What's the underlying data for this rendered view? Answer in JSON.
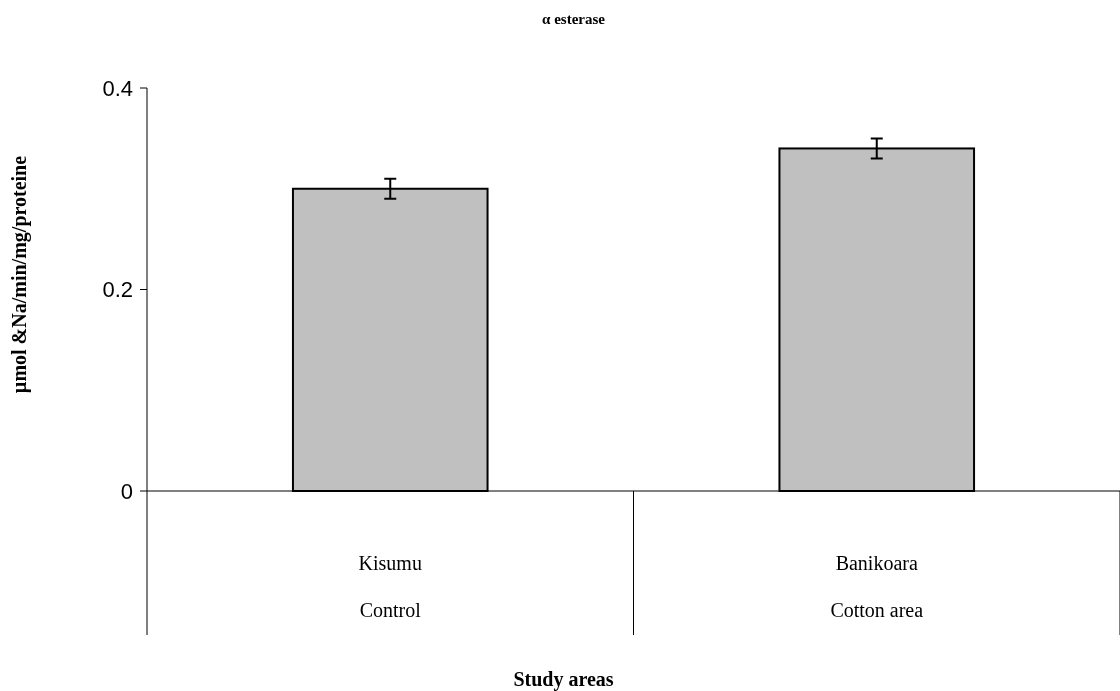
{
  "chart_data": {
    "type": "bar",
    "title": "α esterase",
    "xlabel": "Study areas",
    "ylabel": "µmol &Na/min/mg/proteine",
    "categories": [
      "Kisumu",
      "Banikoara"
    ],
    "values": [
      0.3,
      0.34
    ],
    "errors": [
      0.01,
      0.01
    ],
    "color": "#c0c0c0",
    "ylim": [
      0,
      0.4
    ],
    "yticks": [
      0,
      0.2,
      0.4
    ],
    "grid": false,
    "annotations": [
      "Control",
      "Cotton area"
    ]
  }
}
